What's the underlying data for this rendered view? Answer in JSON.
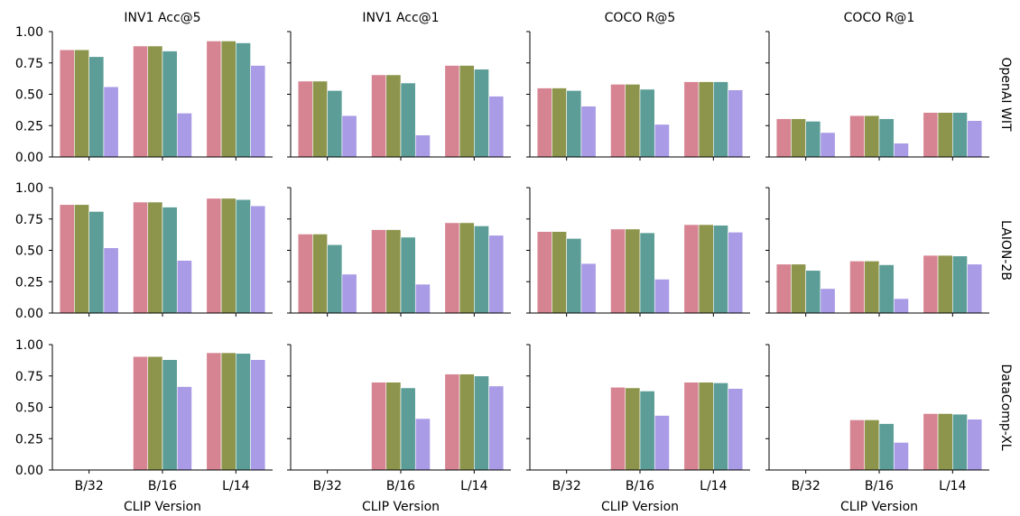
{
  "chart_data": {
    "type": "bar",
    "layout": "facet-grid",
    "columns": [
      "INV1 Acc@5",
      "INV1 Acc@1",
      "COCO R@5",
      "COCO R@1"
    ],
    "rows": [
      "OpenAI WIT",
      "LAION-2B",
      "DataComp-XL"
    ],
    "categories": [
      "B/32",
      "B/16",
      "L/14"
    ],
    "xlabel": "CLIP Version",
    "ylabel": "",
    "ylim": [
      0,
      1
    ],
    "yticks": [
      "0.00",
      "0.25",
      "0.50",
      "0.75",
      "1.00"
    ],
    "grid": false,
    "legend": "none",
    "series_colors": [
      "#d68492",
      "#8d954c",
      "#5c9e97",
      "#a99be6"
    ],
    "panels": [
      [
        {
          "values": [
            [
              0.855,
              0.855,
              0.8,
              0.56
            ],
            [
              0.885,
              0.885,
              0.845,
              0.35
            ],
            [
              0.925,
              0.925,
              0.91,
              0.73
            ]
          ]
        },
        {
          "values": [
            [
              0.605,
              0.605,
              0.53,
              0.33
            ],
            [
              0.655,
              0.655,
              0.59,
              0.175
            ],
            [
              0.73,
              0.73,
              0.7,
              0.485
            ]
          ]
        },
        {
          "values": [
            [
              0.55,
              0.55,
              0.53,
              0.405
            ],
            [
              0.58,
              0.58,
              0.54,
              0.26
            ],
            [
              0.6,
              0.6,
              0.6,
              0.535
            ]
          ]
        },
        {
          "values": [
            [
              0.305,
              0.305,
              0.285,
              0.195
            ],
            [
              0.33,
              0.33,
              0.305,
              0.11
            ],
            [
              0.355,
              0.355,
              0.355,
              0.29
            ]
          ]
        }
      ],
      [
        {
          "values": [
            [
              0.865,
              0.865,
              0.81,
              0.52
            ],
            [
              0.885,
              0.885,
              0.845,
              0.42
            ],
            [
              0.915,
              0.915,
              0.905,
              0.855
            ]
          ]
        },
        {
          "values": [
            [
              0.63,
              0.63,
              0.545,
              0.31
            ],
            [
              0.665,
              0.665,
              0.605,
              0.23
            ],
            [
              0.72,
              0.72,
              0.695,
              0.62
            ]
          ]
        },
        {
          "values": [
            [
              0.65,
              0.65,
              0.595,
              0.395
            ],
            [
              0.67,
              0.67,
              0.64,
              0.27
            ],
            [
              0.705,
              0.705,
              0.7,
              0.645
            ]
          ]
        },
        {
          "values": [
            [
              0.39,
              0.39,
              0.34,
              0.195
            ],
            [
              0.415,
              0.415,
              0.385,
              0.115
            ],
            [
              0.46,
              0.46,
              0.455,
              0.39
            ]
          ]
        }
      ],
      [
        {
          "values": [
            null,
            [
              0.905,
              0.905,
              0.88,
              0.665
            ],
            [
              0.935,
              0.935,
              0.93,
              0.88
            ]
          ]
        },
        {
          "values": [
            null,
            [
              0.7,
              0.7,
              0.655,
              0.41
            ],
            [
              0.765,
              0.765,
              0.75,
              0.67
            ]
          ]
        },
        {
          "values": [
            null,
            [
              0.66,
              0.655,
              0.63,
              0.435
            ],
            [
              0.7,
              0.7,
              0.695,
              0.65
            ]
          ]
        },
        {
          "values": [
            null,
            [
              0.4,
              0.4,
              0.37,
              0.22
            ],
            [
              0.45,
              0.45,
              0.445,
              0.405
            ]
          ]
        }
      ]
    ]
  }
}
